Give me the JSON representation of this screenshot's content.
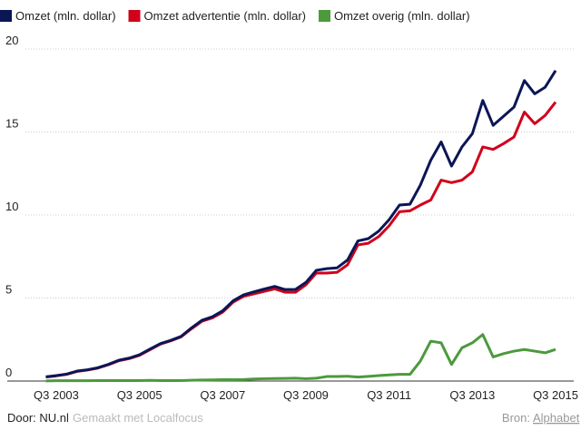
{
  "chart_data": {
    "type": "line",
    "categories": [
      null,
      "Q3 2003",
      null,
      null,
      null,
      null,
      null,
      null,
      null,
      "Q3 2005",
      null,
      null,
      null,
      null,
      null,
      null,
      null,
      "Q3 2007",
      null,
      null,
      null,
      null,
      null,
      null,
      null,
      "Q3 2009",
      null,
      null,
      null,
      null,
      null,
      null,
      null,
      "Q3 2011",
      null,
      null,
      null,
      null,
      null,
      null,
      null,
      "Q3 2013",
      null,
      null,
      null,
      null,
      null,
      null,
      null,
      "Q3 2015"
    ],
    "series": [
      {
        "name": "Omzet (mln. dollar)",
        "color": "#0b1656",
        "values": [
          0.25,
          0.33,
          0.42,
          0.6,
          0.68,
          0.8,
          1.0,
          1.25,
          1.38,
          1.58,
          1.92,
          2.25,
          2.45,
          2.69,
          3.2,
          3.66,
          3.87,
          4.23,
          4.83,
          5.19,
          5.37,
          5.54,
          5.7,
          5.51,
          5.52,
          5.94,
          6.67,
          6.77,
          6.82,
          7.29,
          8.44,
          8.58,
          9.03,
          9.72,
          10.6,
          10.65,
          11.8,
          13.3,
          14.4,
          12.95,
          14.1,
          14.9,
          16.9,
          15.4,
          15.95,
          16.5,
          18.1,
          17.3,
          17.7,
          18.7
        ]
      },
      {
        "name": "Omzet advertentie (mln. dollar)",
        "color": "#d0021b",
        "values": [
          0.24,
          0.31,
          0.4,
          0.58,
          0.66,
          0.78,
          0.98,
          1.22,
          1.35,
          1.55,
          1.88,
          2.22,
          2.42,
          2.66,
          3.15,
          3.6,
          3.8,
          4.15,
          4.75,
          5.1,
          5.25,
          5.4,
          5.55,
          5.35,
          5.35,
          5.8,
          6.5,
          6.5,
          6.55,
          7.0,
          8.2,
          8.3,
          8.7,
          9.35,
          10.2,
          10.25,
          10.6,
          10.9,
          12.1,
          11.95,
          12.1,
          12.6,
          14.1,
          13.95,
          14.3,
          14.7,
          16.2,
          15.5,
          16.0,
          16.8
        ]
      },
      {
        "name": "Omzet overig (mln. dollar)",
        "color": "#4c9a3b",
        "values": [
          0.01,
          0.02,
          0.02,
          0.02,
          0.02,
          0.03,
          0.03,
          0.03,
          0.03,
          0.03,
          0.04,
          0.03,
          0.03,
          0.03,
          0.05,
          0.06,
          0.07,
          0.08,
          0.08,
          0.09,
          0.12,
          0.14,
          0.15,
          0.16,
          0.17,
          0.14,
          0.17,
          0.27,
          0.27,
          0.29,
          0.24,
          0.28,
          0.33,
          0.37,
          0.4,
          0.4,
          1.2,
          2.4,
          2.3,
          1.0,
          2.0,
          2.3,
          2.8,
          1.45,
          1.65,
          1.8,
          1.9,
          1.8,
          1.7,
          1.9
        ]
      }
    ],
    "ylim": [
      0,
      20
    ],
    "yticks": [
      0,
      5,
      10,
      15,
      20
    ],
    "grid": true,
    "legend": "top"
  },
  "footer": {
    "author": "Door: NU.nl",
    "maker": "Gemaakt met Localfocus",
    "source_label": "Bron:",
    "source_link": "Alphabet"
  }
}
